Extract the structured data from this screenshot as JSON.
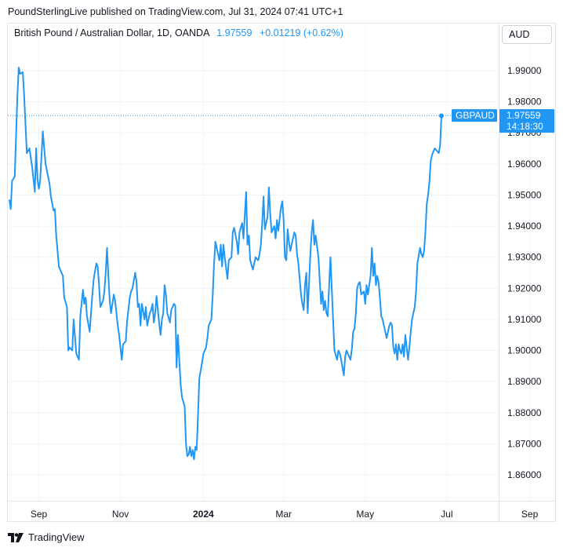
{
  "header": {
    "attribution": "PoundSterlingLive published on TradingView.com, Jul 31, 2024 07:41 UTC+1"
  },
  "legend": {
    "symbol": "British Pound / Australian Dollar, 1D, OANDA",
    "last": "1.97559",
    "change": "+0.01219 (+0.62%)"
  },
  "currency_button": "AUD",
  "footer": {
    "brand": "TradingView",
    "logo": "tradingview-logo-icon"
  },
  "colors": {
    "line": "#2196f3",
    "text": "#131722",
    "grid": "#f0f3fa",
    "border": "#e0e3eb"
  },
  "chart_data": {
    "type": "line",
    "title": "British Pound / Australian Dollar, 1D, OANDA",
    "ylim": [
      1.855,
      2.0
    ],
    "y_ticks": [
      "1.99000",
      "1.98000",
      "1.97000",
      "1.96000",
      "1.95000",
      "1.94000",
      "1.93000",
      "1.92000",
      "1.91000",
      "1.90000",
      "1.89000",
      "1.88000",
      "1.87000",
      "1.86000"
    ],
    "x_ticks": [
      {
        "label": "Sep",
        "day": 22,
        "bold": false
      },
      {
        "label": "Nov",
        "day": 83,
        "bold": false
      },
      {
        "label": "2024",
        "day": 145,
        "bold": true
      },
      {
        "label": "Mar",
        "day": 205,
        "bold": false
      },
      {
        "label": "May",
        "day": 266,
        "bold": false
      },
      {
        "label": "Jul",
        "day": 327,
        "bold": false
      },
      {
        "label": "Sep",
        "day": 389,
        "bold": false
      }
    ],
    "x_range": [
      -3,
      407
    ],
    "price_label": {
      "symbol": "GBPAUD",
      "price": "1.97559",
      "countdown": "14:18:30"
    },
    "series": [
      {
        "name": "GBPAUD",
        "points": [
          [
            0,
            1.9485
          ],
          [
            1,
            1.9455
          ],
          [
            2,
            1.9545
          ],
          [
            4,
            1.956
          ],
          [
            6,
            1.982
          ],
          [
            7,
            1.991
          ],
          [
            8,
            1.989
          ],
          [
            10,
            1.9895
          ],
          [
            11,
            1.982
          ],
          [
            13,
            1.9635
          ],
          [
            15,
            1.965
          ],
          [
            17,
            1.959
          ],
          [
            19,
            1.951
          ],
          [
            20,
            1.965
          ],
          [
            21,
            1.955
          ],
          [
            22,
            1.952
          ],
          [
            23,
            1.9545
          ],
          [
            25,
            1.9705
          ],
          [
            26,
            1.965
          ],
          [
            27,
            1.96
          ],
          [
            30,
            1.9535
          ],
          [
            31,
            1.9495
          ],
          [
            33,
            1.945
          ],
          [
            34,
            1.9455
          ],
          [
            35,
            1.937
          ],
          [
            37,
            1.927
          ],
          [
            40,
            1.924
          ],
          [
            41,
            1.917
          ],
          [
            43,
            1.914
          ],
          [
            44,
            1.9
          ],
          [
            45,
            1.901
          ],
          [
            47,
            1.9
          ],
          [
            48,
            1.91
          ],
          [
            50,
            1.899
          ],
          [
            52,
            1.897
          ],
          [
            53,
            1.911
          ],
          [
            55,
            1.9195
          ],
          [
            56,
            1.915
          ],
          [
            57,
            1.917
          ],
          [
            58,
            1.911
          ],
          [
            60,
            1.906
          ],
          [
            62,
            1.918
          ],
          [
            63,
            1.923
          ],
          [
            65,
            1.928
          ],
          [
            66,
            1.927
          ],
          [
            67,
            1.921
          ],
          [
            68,
            1.914
          ],
          [
            70,
            1.916
          ],
          [
            71,
            1.919
          ],
          [
            72,
            1.925
          ],
          [
            73,
            1.933
          ],
          [
            74,
            1.924
          ],
          [
            75,
            1.916
          ],
          [
            76,
            1.912
          ],
          [
            78,
            1.918
          ],
          [
            79,
            1.916
          ],
          [
            81,
            1.908
          ],
          [
            82,
            1.905
          ],
          [
            84,
            1.897
          ],
          [
            85,
            1.902
          ],
          [
            87,
            1.903
          ],
          [
            88,
            1.9095
          ],
          [
            90,
            1.917
          ],
          [
            91,
            1.919
          ],
          [
            92,
            1.92
          ],
          [
            94,
            1.925
          ],
          [
            95,
            1.922
          ],
          [
            96,
            1.914
          ],
          [
            97,
            1.915
          ],
          [
            98,
            1.908
          ],
          [
            99,
            1.915
          ],
          [
            101,
            1.91
          ],
          [
            102,
            1.914
          ],
          [
            103,
            1.908
          ],
          [
            105,
            1.912
          ],
          [
            106,
            1.913
          ],
          [
            107,
            1.915
          ],
          [
            108,
            1.909
          ],
          [
            109,
            1.912
          ],
          [
            110,
            1.9175
          ],
          [
            112,
            1.9085
          ],
          [
            113,
            1.905
          ],
          [
            114,
            1.91
          ],
          [
            115,
            1.912
          ],
          [
            116,
            1.921
          ],
          [
            117,
            1.918
          ],
          [
            118,
            1.912
          ],
          [
            120,
            1.909
          ],
          [
            121,
            1.913
          ],
          [
            123,
            1.915
          ],
          [
            124,
            1.9145
          ],
          [
            125,
            1.8945
          ],
          [
            126,
            1.905
          ],
          [
            128,
            1.889
          ],
          [
            129,
            1.885
          ],
          [
            131,
            1.882
          ],
          [
            132,
            1.87
          ],
          [
            133,
            1.866
          ],
          [
            134,
            1.8665
          ],
          [
            135,
            1.869
          ],
          [
            136,
            1.866
          ],
          [
            137,
            1.868
          ],
          [
            138,
            1.865
          ],
          [
            139,
            1.869
          ],
          [
            140,
            1.868
          ],
          [
            141,
            1.879
          ],
          [
            142,
            1.891
          ],
          [
            144,
            1.896
          ],
          [
            145,
            1.899
          ],
          [
            147,
            1.901
          ],
          [
            148,
            1.904
          ],
          [
            149,
            1.908
          ],
          [
            151,
            1.91
          ],
          [
            152,
            1.918
          ],
          [
            153,
            1.928
          ],
          [
            154,
            1.935
          ],
          [
            155,
            1.933
          ],
          [
            157,
            1.929
          ],
          [
            158,
            1.934
          ],
          [
            159,
            1.927
          ],
          [
            160,
            1.934
          ],
          [
            161,
            1.93
          ],
          [
            163,
            1.923
          ],
          [
            164,
            1.929
          ],
          [
            166,
            1.93
          ],
          [
            167,
            1.938
          ],
          [
            168,
            1.9395
          ],
          [
            170,
            1.935
          ],
          [
            171,
            1.931
          ],
          [
            172,
            1.938
          ],
          [
            174,
            1.941
          ],
          [
            175,
            1.936
          ],
          [
            177,
            1.951
          ],
          [
            178,
            1.934
          ],
          [
            179,
            1.937
          ],
          [
            180,
            1.929
          ],
          [
            182,
            1.926
          ],
          [
            183,
            1.928
          ],
          [
            184,
            1.93
          ],
          [
            186,
            1.929
          ],
          [
            187,
            1.931
          ],
          [
            188,
            1.934
          ],
          [
            189,
            1.941
          ],
          [
            190,
            1.9495
          ],
          [
            191,
            1.939
          ],
          [
            193,
            1.943
          ],
          [
            194,
            1.9525
          ],
          [
            195,
            1.944
          ],
          [
            196,
            1.938
          ],
          [
            198,
            1.94
          ],
          [
            199,
            1.936
          ],
          [
            200,
            1.942
          ],
          [
            201,
            1.9385
          ],
          [
            203,
            1.946
          ],
          [
            204,
            1.948
          ],
          [
            205,
            1.942
          ],
          [
            206,
            1.93
          ],
          [
            207,
            1.929
          ],
          [
            208,
            1.939
          ],
          [
            209,
            1.935
          ],
          [
            210,
            1.932
          ],
          [
            212,
            1.936
          ],
          [
            213,
            1.938
          ],
          [
            214,
            1.937
          ],
          [
            215,
            1.931
          ],
          [
            216,
            1.928
          ],
          [
            217,
            1.923
          ],
          [
            218,
            1.918
          ],
          [
            219,
            1.915
          ],
          [
            220,
            1.913
          ],
          [
            221,
            1.921
          ],
          [
            222,
            1.925
          ],
          [
            223,
            1.912
          ],
          [
            225,
            1.931
          ],
          [
            226,
            1.938
          ],
          [
            227,
            1.942
          ],
          [
            228,
            1.934
          ],
          [
            229,
            1.937
          ],
          [
            231,
            1.93
          ],
          [
            233,
            1.915
          ],
          [
            234,
            1.919
          ],
          [
            235,
            1.913
          ],
          [
            236,
            1.916
          ],
          [
            237,
            1.912
          ],
          [
            238,
            1.911
          ],
          [
            240,
            1.93
          ],
          [
            242,
            1.91
          ],
          [
            243,
            1.9
          ],
          [
            245,
            1.897
          ],
          [
            246,
            1.9
          ],
          [
            247,
            1.899
          ],
          [
            248,
            1.897
          ],
          [
            250,
            1.892
          ],
          [
            251,
            1.898
          ],
          [
            252,
            1.9
          ],
          [
            254,
            1.898
          ],
          [
            255,
            1.897
          ],
          [
            256,
            1.9005
          ],
          [
            257,
            1.906
          ],
          [
            258,
            1.907
          ],
          [
            259,
            1.912
          ],
          [
            260,
            1.92
          ],
          [
            261,
            1.9215
          ],
          [
            262,
            1.922
          ],
          [
            263,
            1.918
          ],
          [
            265,
            1.919
          ],
          [
            266,
            1.915
          ],
          [
            267,
            1.921
          ],
          [
            268,
            1.918
          ],
          [
            270,
            1.924
          ],
          [
            271,
            1.933
          ],
          [
            272,
            1.924
          ],
          [
            273,
            1.928
          ],
          [
            274,
            1.921
          ],
          [
            275,
            1.924
          ],
          [
            276,
            1.922
          ],
          [
            277,
            1.917
          ],
          [
            278,
            1.911
          ],
          [
            279,
            1.91
          ],
          [
            280,
            1.908
          ],
          [
            282,
            1.904
          ],
          [
            284,
            1.908
          ],
          [
            285,
            1.909
          ],
          [
            286,
            1.908
          ],
          [
            287,
            1.901
          ],
          [
            288,
            1.899
          ],
          [
            289,
            1.902
          ],
          [
            290,
            1.897
          ],
          [
            291,
            1.902
          ],
          [
            292,
            1.9
          ],
          [
            293,
            1.899
          ],
          [
            294,
            1.902
          ],
          [
            295,
            1.898
          ],
          [
            296,
            1.905
          ],
          [
            298,
            1.897
          ],
          [
            299,
            1.901
          ],
          [
            300,
            1.906
          ],
          [
            301,
            1.91
          ],
          [
            303,
            1.914
          ],
          [
            304,
            1.919
          ],
          [
            305,
            1.928
          ],
          [
            307,
            1.933
          ],
          [
            308,
            1.931
          ],
          [
            309,
            1.93
          ],
          [
            310,
            1.932
          ],
          [
            311,
            1.938
          ],
          [
            312,
            1.947
          ],
          [
            313,
            1.95
          ],
          [
            314,
            1.954
          ],
          [
            315,
            1.961
          ],
          [
            316,
            1.963
          ],
          [
            318,
            1.965
          ],
          [
            320,
            1.964
          ],
          [
            321,
            1.9635
          ],
          [
            322,
            1.966
          ],
          [
            323,
            1.9755
          ]
        ]
      }
    ]
  }
}
